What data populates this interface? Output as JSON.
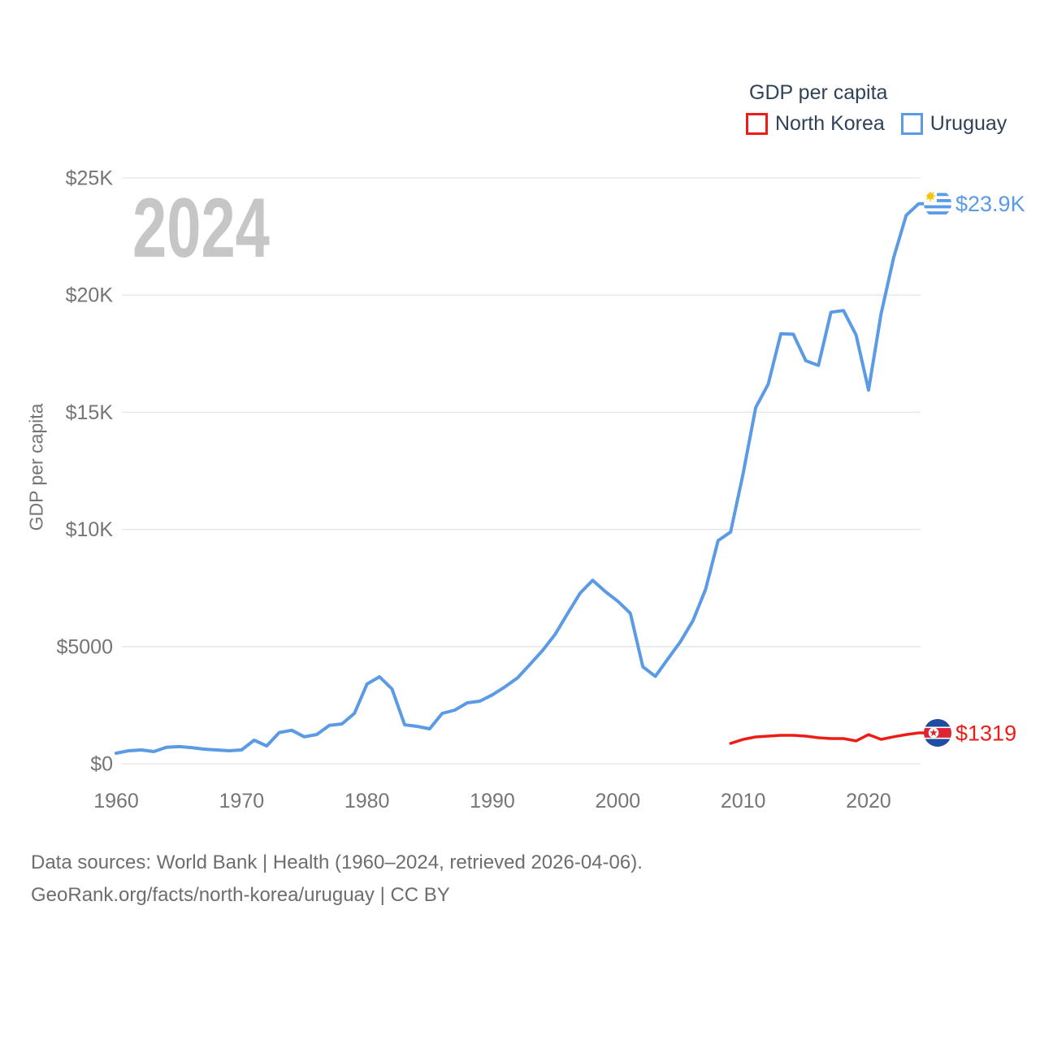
{
  "watermark": "2024",
  "legend": {
    "title": "GDP per capita",
    "items": [
      {
        "label": "North Korea",
        "color": "#ec1d17"
      },
      {
        "label": "Uruguay",
        "color": "#5b9ae4"
      }
    ]
  },
  "y_axis_title": "GDP per capita",
  "footer": {
    "line1": "Data sources: World Bank | Health (1960–2024, retrieved 2026-04-06).",
    "line2": "GeoRank.org/facts/north-korea/uruguay | CC BY"
  },
  "chart_data": {
    "type": "line",
    "title": "GDP per capita",
    "ylabel": "GDP per capita",
    "ylim": [
      0,
      25000
    ],
    "xlim": [
      1960,
      2024
    ],
    "grid": true,
    "legend_position": "top-right",
    "x_ticks": [
      1960,
      1970,
      1980,
      1990,
      2000,
      2010,
      2020
    ],
    "y_ticks": [
      {
        "value": 0,
        "label": "$0"
      },
      {
        "value": 5000,
        "label": "$5000"
      },
      {
        "value": 10000,
        "label": "$10K"
      },
      {
        "value": 15000,
        "label": "$15K"
      },
      {
        "value": 20000,
        "label": "$20K"
      },
      {
        "value": 25000,
        "label": "$25K"
      }
    ],
    "series": [
      {
        "name": "Uruguay",
        "color": "#5b9ae4",
        "flag": "uruguay",
        "end_label": "$23.9K",
        "end_value": 23900,
        "start_year": 1960,
        "values": [
          450,
          555,
          590,
          520,
          700,
          730,
          690,
          625,
          590,
          555,
          590,
          1005,
          760,
          1330,
          1430,
          1150,
          1250,
          1640,
          1700,
          2150,
          3400,
          3710,
          3190,
          1665,
          1595,
          1490,
          2150,
          2290,
          2600,
          2670,
          2940,
          3280,
          3660,
          4240,
          4830,
          5520,
          6410,
          7280,
          7830,
          7350,
          6940,
          6420,
          4140,
          3730,
          4480,
          5210,
          6110,
          7440,
          9520,
          9890,
          12400,
          15200,
          16200,
          18350,
          18330,
          17200,
          17000,
          19270,
          19340,
          18300,
          15950,
          19200,
          21600,
          23400,
          23900
        ]
      },
      {
        "name": "North Korea",
        "color": "#ec1d17",
        "flag": "north_korea",
        "end_label": "$1319",
        "end_value": 1319,
        "start_year": 2009,
        "values": [
          870,
          1040,
          1145,
          1180,
          1215,
          1215,
          1180,
          1110,
          1075,
          1075,
          975,
          1245,
          1040,
          1150,
          1245,
          1319
        ]
      }
    ]
  }
}
